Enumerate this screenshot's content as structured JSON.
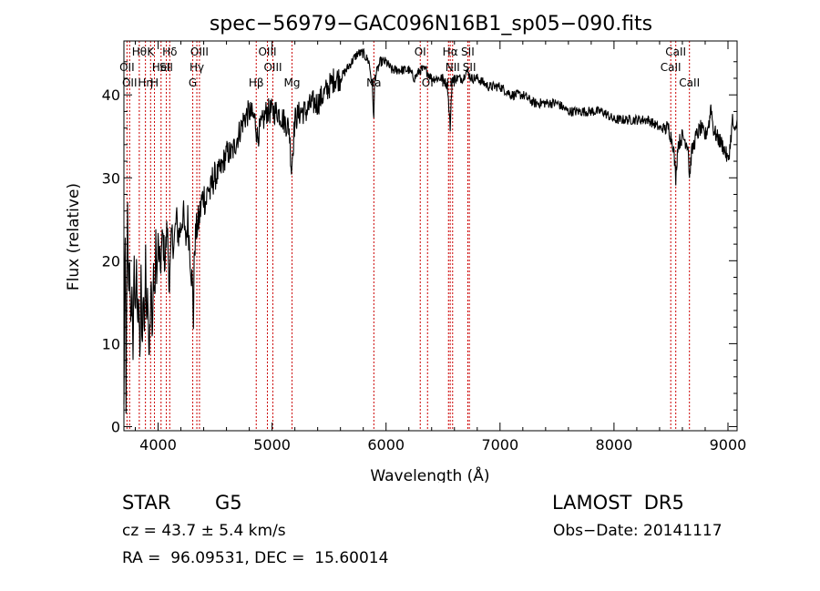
{
  "chart_data": {
    "type": "line",
    "title": "spec−56979−GAC096N16B1_sp05−090.fits",
    "xlabel": "Wavelength (Å)",
    "ylabel": "Flux (relative)",
    "xlim": [
      3700,
      9080
    ],
    "ylim": [
      -0.5,
      46.5
    ],
    "x_ticks": [
      4000,
      5000,
      6000,
      7000,
      8000,
      9000
    ],
    "y_ticks": [
      0,
      10,
      20,
      30,
      40
    ],
    "grid": false,
    "line_color": "#000000",
    "marker_color": "#cc0000",
    "series": [
      {
        "values": [
          [
            3700,
            2
          ],
          [
            3705,
            14
          ],
          [
            3712,
            22
          ],
          [
            3718,
            3
          ],
          [
            3725,
            15
          ],
          [
            3732,
            26
          ],
          [
            3740,
            16
          ],
          [
            3750,
            21
          ],
          [
            3760,
            11
          ],
          [
            3770,
            17
          ],
          [
            3780,
            9
          ],
          [
            3790,
            19
          ],
          [
            3800,
            13
          ],
          [
            3810,
            21
          ],
          [
            3820,
            11
          ],
          [
            3830,
            16
          ],
          [
            3840,
            7
          ],
          [
            3850,
            18
          ],
          [
            3860,
            10
          ],
          [
            3870,
            16
          ],
          [
            3880,
            12
          ],
          [
            3890,
            20
          ],
          [
            3900,
            14
          ],
          [
            3910,
            17
          ],
          [
            3920,
            9
          ],
          [
            3930,
            12
          ],
          [
            3940,
            17
          ],
          [
            3950,
            11
          ],
          [
            3960,
            19
          ],
          [
            3970,
            15
          ],
          [
            3980,
            22
          ],
          [
            3990,
            18
          ],
          [
            4000,
            22
          ],
          [
            4020,
            19
          ],
          [
            4040,
            23
          ],
          [
            4060,
            20
          ],
          [
            4080,
            24
          ],
          [
            4100,
            17
          ],
          [
            4120,
            23
          ],
          [
            4140,
            22
          ],
          [
            4160,
            25
          ],
          [
            4180,
            23
          ],
          [
            4200,
            24
          ],
          [
            4220,
            26
          ],
          [
            4240,
            22
          ],
          [
            4260,
            25
          ],
          [
            4280,
            21
          ],
          [
            4300,
            17
          ],
          [
            4310,
            13
          ],
          [
            4320,
            22
          ],
          [
            4340,
            24
          ],
          [
            4360,
            25
          ],
          [
            4380,
            27
          ],
          [
            4400,
            28
          ],
          [
            4420,
            27
          ],
          [
            4440,
            29
          ],
          [
            4460,
            28
          ],
          [
            4480,
            30
          ],
          [
            4500,
            30
          ],
          [
            4550,
            31
          ],
          [
            4600,
            33
          ],
          [
            4650,
            33
          ],
          [
            4700,
            35
          ],
          [
            4750,
            37
          ],
          [
            4800,
            38
          ],
          [
            4850,
            37
          ],
          [
            4870,
            35
          ],
          [
            4900,
            36
          ],
          [
            4950,
            38
          ],
          [
            5000,
            38
          ],
          [
            5050,
            38
          ],
          [
            5100,
            37
          ],
          [
            5150,
            36
          ],
          [
            5170,
            31
          ],
          [
            5200,
            37
          ],
          [
            5250,
            38
          ],
          [
            5300,
            38
          ],
          [
            5350,
            39
          ],
          [
            5400,
            39
          ],
          [
            5450,
            40
          ],
          [
            5500,
            41
          ],
          [
            5550,
            42
          ],
          [
            5600,
            42
          ],
          [
            5650,
            43
          ],
          [
            5700,
            44
          ],
          [
            5750,
            45
          ],
          [
            5800,
            45
          ],
          [
            5850,
            44
          ],
          [
            5880,
            41
          ],
          [
            5893,
            37
          ],
          [
            5900,
            42
          ],
          [
            5950,
            44
          ],
          [
            6000,
            44
          ],
          [
            6050,
            43
          ],
          [
            6100,
            43
          ],
          [
            6150,
            43
          ],
          [
            6200,
            43
          ],
          [
            6250,
            42
          ],
          [
            6300,
            43
          ],
          [
            6350,
            43
          ],
          [
            6400,
            42
          ],
          [
            6450,
            42
          ],
          [
            6500,
            42
          ],
          [
            6540,
            41
          ],
          [
            6563,
            36
          ],
          [
            6580,
            42
          ],
          [
            6620,
            42
          ],
          [
            6680,
            42
          ],
          [
            6700,
            43
          ],
          [
            6750,
            42
          ],
          [
            6800,
            42
          ],
          [
            6900,
            41
          ],
          [
            7000,
            41
          ],
          [
            7100,
            40
          ],
          [
            7200,
            40
          ],
          [
            7300,
            39
          ],
          [
            7400,
            39
          ],
          [
            7500,
            39
          ],
          [
            7600,
            38
          ],
          [
            7700,
            38
          ],
          [
            7800,
            38
          ],
          [
            7900,
            38
          ],
          [
            8000,
            37
          ],
          [
            8100,
            37
          ],
          [
            8200,
            37
          ],
          [
            8300,
            37
          ],
          [
            8400,
            36
          ],
          [
            8480,
            36
          ],
          [
            8500,
            35
          ],
          [
            8520,
            34
          ],
          [
            8542,
            30
          ],
          [
            8560,
            34
          ],
          [
            8600,
            35
          ],
          [
            8650,
            34
          ],
          [
            8662,
            30
          ],
          [
            8680,
            33
          ],
          [
            8720,
            35
          ],
          [
            8760,
            36
          ],
          [
            8800,
            35
          ],
          [
            8840,
            37
          ],
          [
            8850,
            39
          ],
          [
            8870,
            36
          ],
          [
            8900,
            35
          ],
          [
            8950,
            34
          ],
          [
            8980,
            33
          ],
          [
            9000,
            32
          ],
          [
            9020,
            34
          ],
          [
            9040,
            37
          ],
          [
            9060,
            35
          ],
          [
            9080,
            37
          ]
        ]
      }
    ],
    "lines": [
      {
        "x": 3727,
        "labels": [
          "OII"
        ]
      },
      {
        "x": 3750,
        "labels": [
          "OII"
        ]
      },
      {
        "x": 3835,
        "labels": [
          "Hθ"
        ]
      },
      {
        "x": 3889,
        "labels": [
          "Hη"
        ]
      },
      {
        "x": 3934,
        "labels": [
          "K"
        ]
      },
      {
        "x": 3968,
        "labels": [
          "H"
        ]
      },
      {
        "x": 4026,
        "labels": [
          "HeI"
        ]
      },
      {
        "x": 4072,
        "labels": [
          "SII"
        ]
      },
      {
        "x": 4102,
        "labels": [
          "Hδ"
        ]
      },
      {
        "x": 4304,
        "labels": [
          "G"
        ]
      },
      {
        "x": 4340,
        "labels": [
          "Hγ"
        ]
      },
      {
        "x": 4363,
        "labels": [
          "OIII"
        ]
      },
      {
        "x": 4861,
        "labels": [
          "Hβ"
        ]
      },
      {
        "x": 4959,
        "labels": [
          "OIII"
        ]
      },
      {
        "x": 5007,
        "labels": [
          "OIII"
        ]
      },
      {
        "x": 5175,
        "labels": [
          "Mg"
        ]
      },
      {
        "x": 5893,
        "labels": [
          "Na"
        ]
      },
      {
        "x": 6300,
        "labels": [
          "OI"
        ]
      },
      {
        "x": 6364,
        "labels": [
          "OI"
        ]
      },
      {
        "x": 6548,
        "labels": [
          "NII"
        ]
      },
      {
        "x": 6563,
        "labels": [
          "Hα"
        ]
      },
      {
        "x": 6584,
        "labels": [
          "NII"
        ]
      },
      {
        "x": 6717,
        "labels": [
          "SII"
        ]
      },
      {
        "x": 6731,
        "labels": [
          "SII"
        ]
      },
      {
        "x": 8498,
        "labels": [
          "CaII"
        ]
      },
      {
        "x": 8542,
        "labels": [
          "CaII"
        ]
      },
      {
        "x": 8662,
        "labels": [
          "CaII"
        ]
      }
    ],
    "line_label_rows": [
      {
        "labels": [
          {
            "text": "Hθ",
            "x": 3835
          },
          {
            "text": "K",
            "x": 3934
          },
          {
            "text": "Hδ",
            "x": 4102
          },
          {
            "text": "OIII",
            "x": 4363
          },
          {
            "text": "OIII",
            "x": 4959
          },
          {
            "text": "OI",
            "x": 6300
          },
          {
            "text": "Hα",
            "x": 6563
          },
          {
            "text": "SII",
            "x": 6717
          },
          {
            "text": "CaII",
            "x": 8542
          }
        ]
      },
      {
        "labels": [
          {
            "text": "OII",
            "x": 3727
          },
          {
            "text": "HeI",
            "x": 4026
          },
          {
            "text": "SII",
            "x": 4072
          },
          {
            "text": "Hγ",
            "x": 4340
          },
          {
            "text": "OIII",
            "x": 5007
          },
          {
            "text": "NII",
            "x": 6584
          },
          {
            "text": "SII",
            "x": 6731
          },
          {
            "text": "CaII",
            "x": 8498
          }
        ]
      },
      {
        "labels": [
          {
            "text": "OII",
            "x": 3750
          },
          {
            "text": "Hη",
            "x": 3889
          },
          {
            "text": "H",
            "x": 3968
          },
          {
            "text": "G",
            "x": 4304
          },
          {
            "text": "Hβ",
            "x": 4861
          },
          {
            "text": "Mg",
            "x": 5175
          },
          {
            "text": "Na",
            "x": 5893
          },
          {
            "text": "OI",
            "x": 6364
          },
          {
            "text": "NII",
            "x": 6548
          },
          {
            "text": "CaII",
            "x": 8662
          }
        ]
      }
    ]
  },
  "info": {
    "class": "STAR",
    "subclass": "G5",
    "survey": "LAMOST  DR5",
    "cz": "cz = 43.7 ± 5.4 km/s",
    "obs_date": "Obs−Date: 20141117",
    "coords": "RA =  96.09531, DEC =  15.60014"
  }
}
